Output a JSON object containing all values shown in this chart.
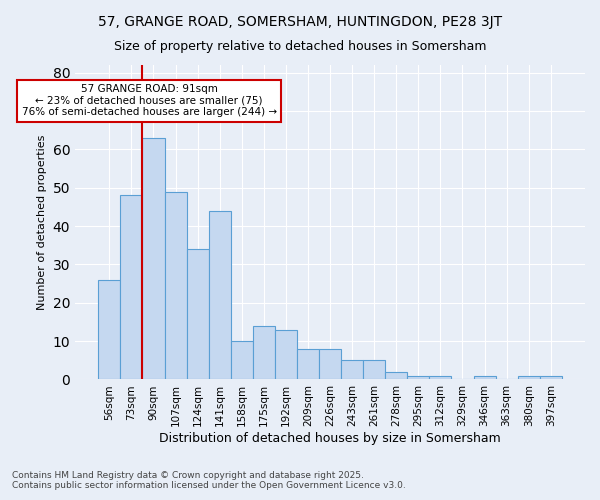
{
  "title1": "57, GRANGE ROAD, SOMERSHAM, HUNTINGDON, PE28 3JT",
  "title2": "Size of property relative to detached houses in Somersham",
  "xlabel": "Distribution of detached houses by size in Somersham",
  "ylabel": "Number of detached properties",
  "categories": [
    "56sqm",
    "73sqm",
    "90sqm",
    "107sqm",
    "124sqm",
    "141sqm",
    "158sqm",
    "175sqm",
    "192sqm",
    "209sqm",
    "226sqm",
    "243sqm",
    "261sqm",
    "278sqm",
    "295sqm",
    "312sqm",
    "329sqm",
    "346sqm",
    "363sqm",
    "380sqm",
    "397sqm"
  ],
  "values": [
    26,
    48,
    63,
    49,
    34,
    44,
    10,
    14,
    13,
    8,
    8,
    5,
    5,
    2,
    1,
    1,
    0,
    1,
    0,
    1,
    1
  ],
  "bar_color": "#c5d8f0",
  "bar_edge_color": "#5a9fd4",
  "bg_color": "#e8eef7",
  "vline_x_index": 2,
  "vline_color": "#cc0000",
  "annotation_text": "57 GRANGE ROAD: 91sqm\n← 23% of detached houses are smaller (75)\n76% of semi-detached houses are larger (244) →",
  "annotation_box_color": "#cc0000",
  "ylim": [
    0,
    82
  ],
  "yticks": [
    0,
    10,
    20,
    30,
    40,
    50,
    60,
    70,
    80
  ],
  "footnote1": "Contains HM Land Registry data © Crown copyright and database right 2025.",
  "footnote2": "Contains public sector information licensed under the Open Government Licence v3.0."
}
